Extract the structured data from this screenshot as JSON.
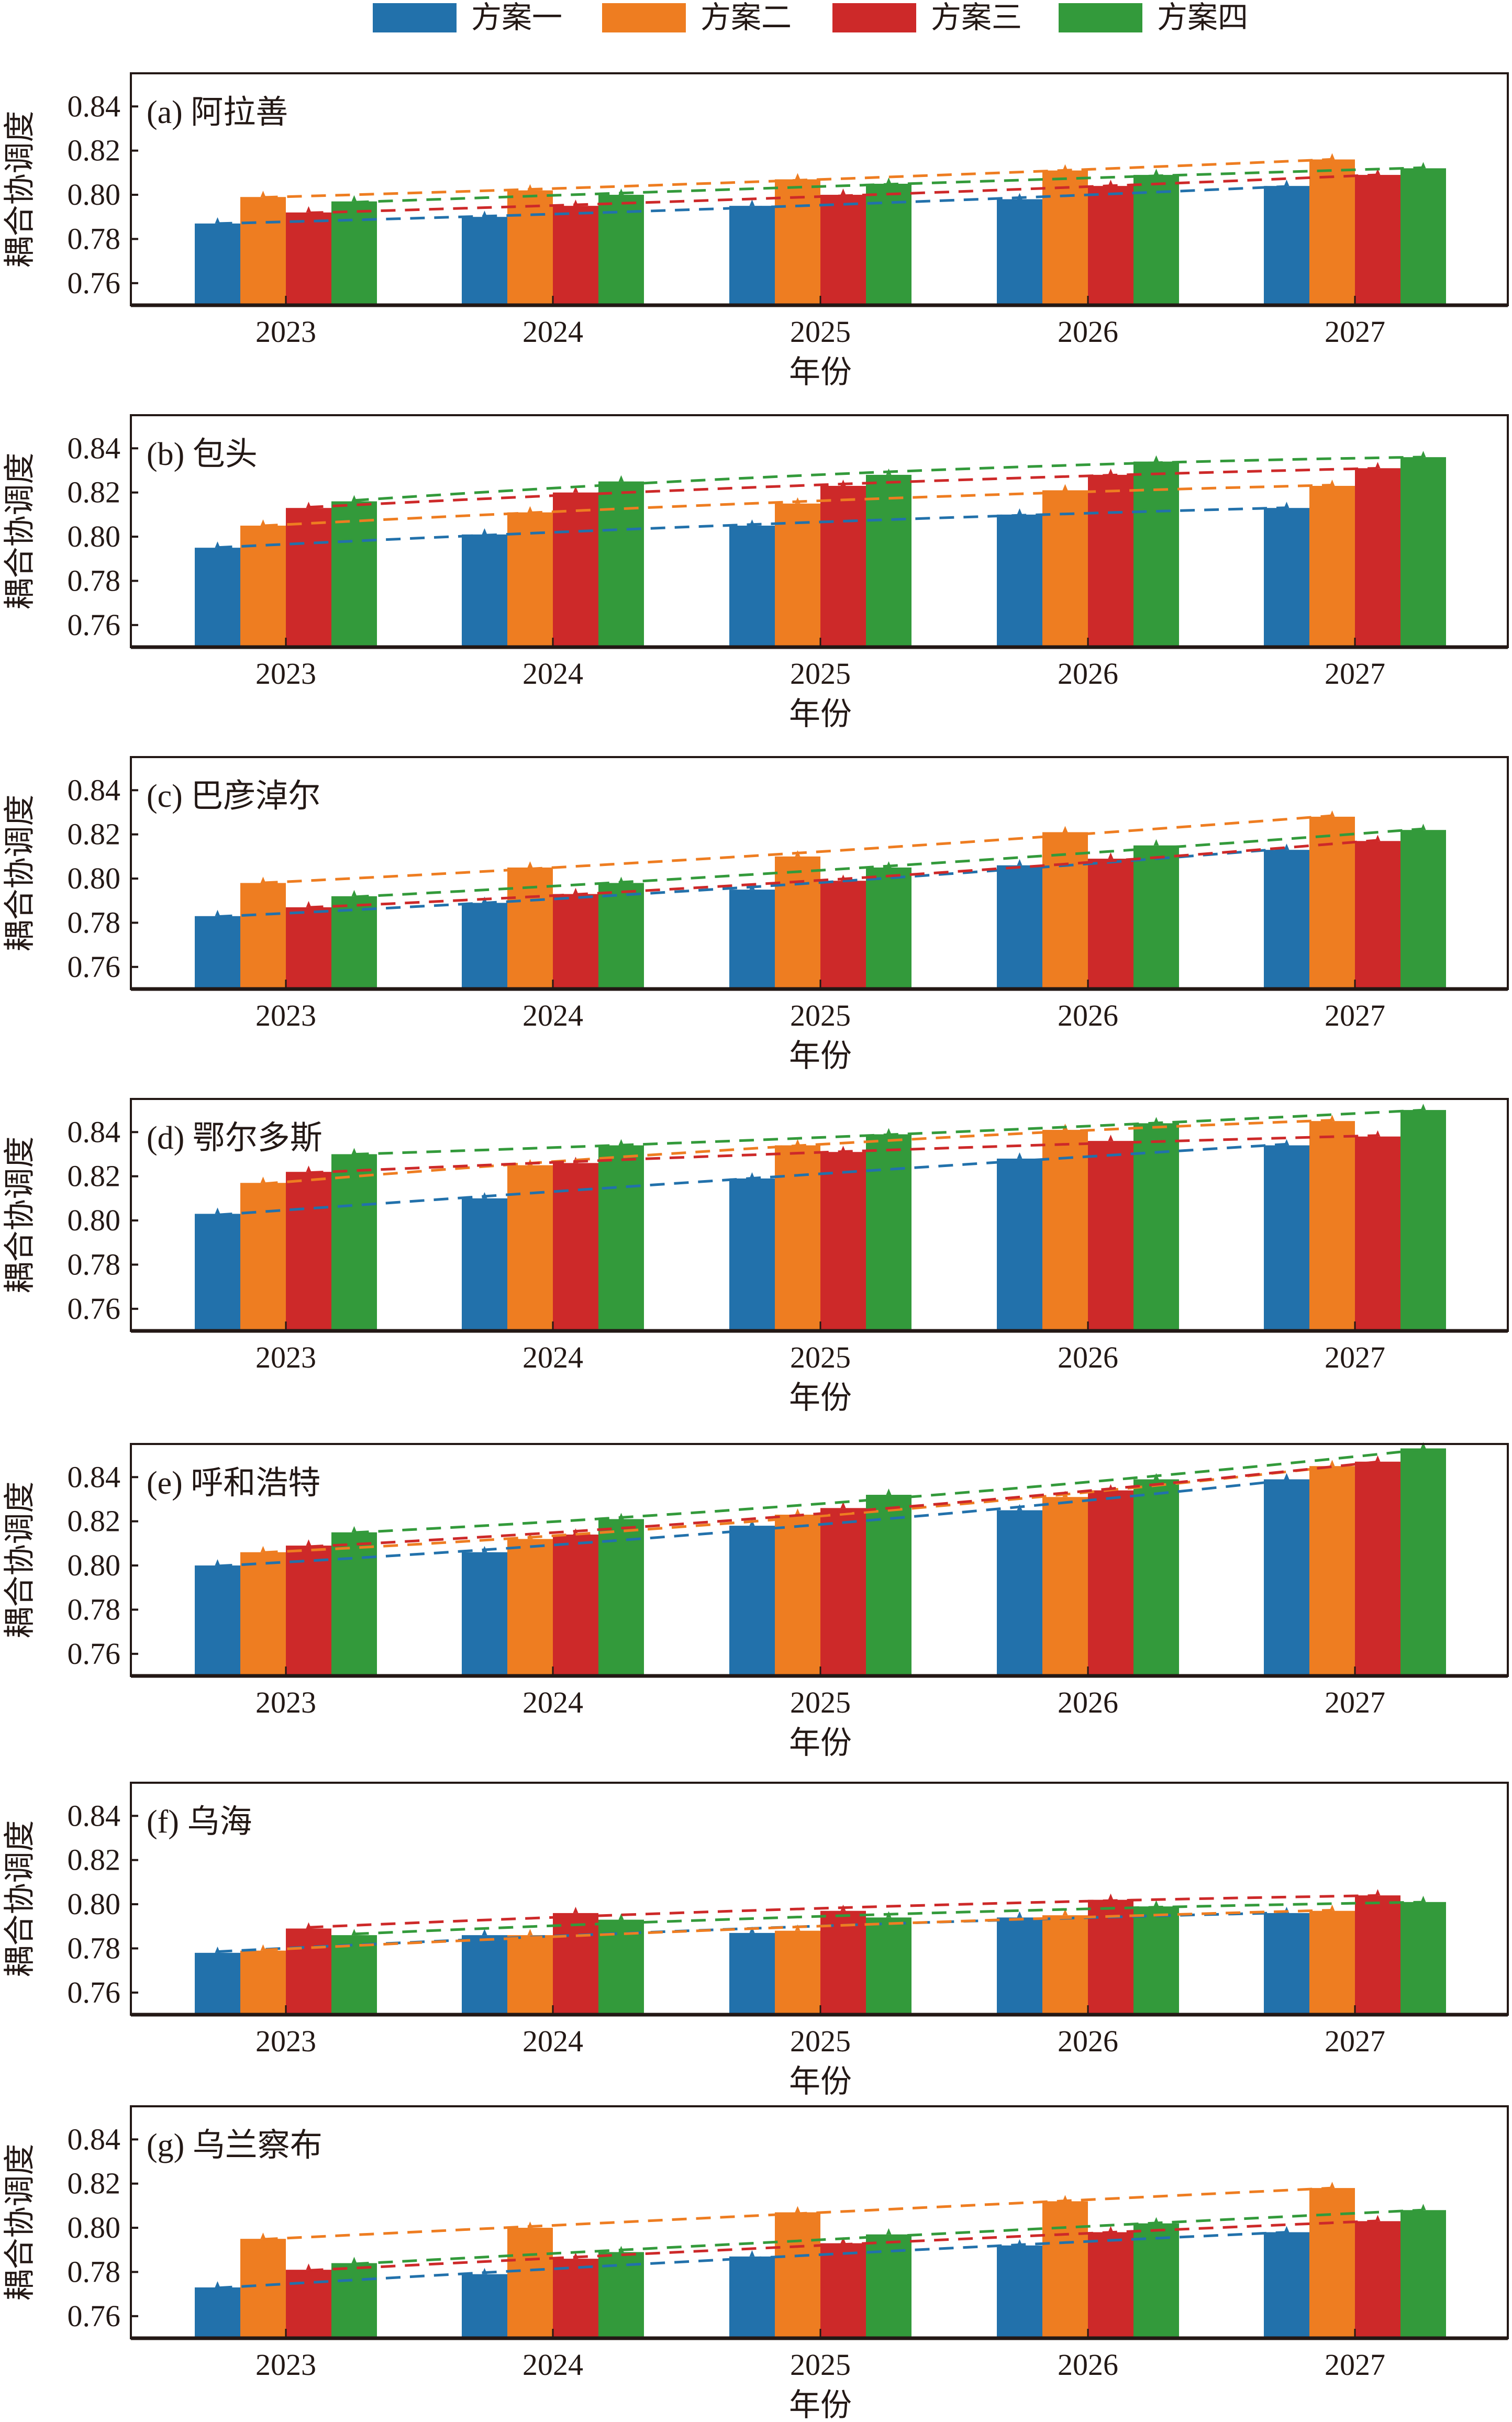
{
  "legend": {
    "items": [
      {
        "label": "方案一",
        "color": "#2271ab"
      },
      {
        "label": "方案二",
        "color": "#ee7d21"
      },
      {
        "label": "方案三",
        "color": "#cd2929"
      },
      {
        "label": "方案四",
        "color": "#339a3b"
      }
    ]
  },
  "chart_data": [
    {
      "type": "bar",
      "title": "(a) 阿拉善",
      "xlabel": "年份",
      "ylabel": "耦合协调度",
      "categories": [
        "2023",
        "2024",
        "2025",
        "2026",
        "2027"
      ],
      "yticks": [
        "0.76",
        "0.78",
        "0.80",
        "0.82",
        "0.84"
      ],
      "ylim": [
        0.75,
        0.855
      ],
      "trendlines": "dashed, per series",
      "series": [
        {
          "name": "方案一",
          "values": [
            0.787,
            0.79,
            0.795,
            0.798,
            0.804
          ]
        },
        {
          "name": "方案二",
          "values": [
            0.799,
            0.802,
            0.807,
            0.811,
            0.816
          ]
        },
        {
          "name": "方案三",
          "values": [
            0.792,
            0.795,
            0.8,
            0.804,
            0.809
          ]
        },
        {
          "name": "方案四",
          "values": [
            0.797,
            0.8,
            0.805,
            0.809,
            0.812
          ]
        }
      ]
    },
    {
      "type": "bar",
      "title": "(b) 包头",
      "xlabel": "年份",
      "ylabel": "耦合协调度",
      "categories": [
        "2023",
        "2024",
        "2025",
        "2026",
        "2027"
      ],
      "yticks": [
        "0.76",
        "0.78",
        "0.80",
        "0.82",
        "0.84"
      ],
      "ylim": [
        0.75,
        0.855
      ],
      "trendlines": "dashed, per series",
      "series": [
        {
          "name": "方案一",
          "values": [
            0.795,
            0.801,
            0.805,
            0.81,
            0.813
          ]
        },
        {
          "name": "方案二",
          "values": [
            0.805,
            0.811,
            0.815,
            0.821,
            0.823
          ]
        },
        {
          "name": "方案三",
          "values": [
            0.813,
            0.82,
            0.823,
            0.828,
            0.831
          ]
        },
        {
          "name": "方案四",
          "values": [
            0.816,
            0.825,
            0.828,
            0.834,
            0.836
          ]
        }
      ]
    },
    {
      "type": "bar",
      "title": "(c) 巴彦淖尔",
      "xlabel": "年份",
      "ylabel": "耦合协调度",
      "categories": [
        "2023",
        "2024",
        "2025",
        "2026",
        "2027"
      ],
      "yticks": [
        "0.76",
        "0.78",
        "0.80",
        "0.82",
        "0.84"
      ],
      "ylim": [
        0.75,
        0.855
      ],
      "trendlines": "dashed, per series",
      "series": [
        {
          "name": "方案一",
          "values": [
            0.783,
            0.789,
            0.795,
            0.806,
            0.813
          ]
        },
        {
          "name": "方案二",
          "values": [
            0.798,
            0.805,
            0.81,
            0.821,
            0.828
          ]
        },
        {
          "name": "方案三",
          "values": [
            0.787,
            0.793,
            0.799,
            0.809,
            0.817
          ]
        },
        {
          "name": "方案四",
          "values": [
            0.792,
            0.798,
            0.805,
            0.815,
            0.822
          ]
        }
      ]
    },
    {
      "type": "bar",
      "title": "(d) 鄂尔多斯",
      "xlabel": "年份",
      "ylabel": "耦合协调度",
      "categories": [
        "2023",
        "2024",
        "2025",
        "2026",
        "2027"
      ],
      "yticks": [
        "0.76",
        "0.78",
        "0.80",
        "0.82",
        "0.84"
      ],
      "ylim": [
        0.75,
        0.855
      ],
      "trendlines": "dashed, per series",
      "series": [
        {
          "name": "方案一",
          "values": [
            0.803,
            0.81,
            0.819,
            0.828,
            0.834
          ]
        },
        {
          "name": "方案二",
          "values": [
            0.817,
            0.825,
            0.834,
            0.841,
            0.845
          ]
        },
        {
          "name": "方案三",
          "values": [
            0.822,
            0.826,
            0.831,
            0.836,
            0.838
          ]
        },
        {
          "name": "方案四",
          "values": [
            0.83,
            0.834,
            0.839,
            0.844,
            0.85
          ]
        }
      ]
    },
    {
      "type": "bar",
      "title": "(e) 呼和浩特",
      "xlabel": "年份",
      "ylabel": "耦合协调度",
      "categories": [
        "2023",
        "2024",
        "2025",
        "2026",
        "2027"
      ],
      "yticks": [
        "0.76",
        "0.78",
        "0.80",
        "0.82",
        "0.84"
      ],
      "ylim": [
        0.75,
        0.855
      ],
      "trendlines": "dashed, per series",
      "series": [
        {
          "name": "方案一",
          "values": [
            0.8,
            0.806,
            0.818,
            0.825,
            0.839
          ]
        },
        {
          "name": "方案二",
          "values": [
            0.806,
            0.812,
            0.823,
            0.831,
            0.845
          ]
        },
        {
          "name": "方案三",
          "values": [
            0.809,
            0.814,
            0.826,
            0.834,
            0.847
          ]
        },
        {
          "name": "方案四",
          "values": [
            0.815,
            0.821,
            0.832,
            0.839,
            0.853
          ]
        }
      ]
    },
    {
      "type": "bar",
      "title": "(f) 乌海",
      "xlabel": "年份",
      "ylabel": "耦合协调度",
      "categories": [
        "2023",
        "2024",
        "2025",
        "2026",
        "2027"
      ],
      "yticks": [
        "0.76",
        "0.78",
        "0.80",
        "0.82",
        "0.84"
      ],
      "ylim": [
        0.75,
        0.855
      ],
      "trendlines": "dashed, per series",
      "series": [
        {
          "name": "方案一",
          "values": [
            0.778,
            0.786,
            0.787,
            0.794,
            0.796
          ]
        },
        {
          "name": "方案二",
          "values": [
            0.779,
            0.786,
            0.788,
            0.795,
            0.797
          ]
        },
        {
          "name": "方案三",
          "values": [
            0.789,
            0.796,
            0.797,
            0.802,
            0.804
          ]
        },
        {
          "name": "方案四",
          "values": [
            0.786,
            0.793,
            0.794,
            0.799,
            0.801
          ]
        }
      ]
    },
    {
      "type": "bar",
      "title": "(g) 乌兰察布",
      "xlabel": "年份",
      "ylabel": "耦合协调度",
      "categories": [
        "2023",
        "2024",
        "2025",
        "2026",
        "2027"
      ],
      "yticks": [
        "0.76",
        "0.78",
        "0.80",
        "0.82",
        "0.84"
      ],
      "ylim": [
        0.75,
        0.855
      ],
      "trendlines": "dashed, per series",
      "series": [
        {
          "name": "方案一",
          "values": [
            0.773,
            0.779,
            0.787,
            0.792,
            0.798
          ]
        },
        {
          "name": "方案二",
          "values": [
            0.795,
            0.8,
            0.807,
            0.812,
            0.818
          ]
        },
        {
          "name": "方案三",
          "values": [
            0.781,
            0.786,
            0.793,
            0.798,
            0.803
          ]
        },
        {
          "name": "方案四",
          "values": [
            0.784,
            0.789,
            0.797,
            0.802,
            0.808
          ]
        }
      ]
    }
  ]
}
